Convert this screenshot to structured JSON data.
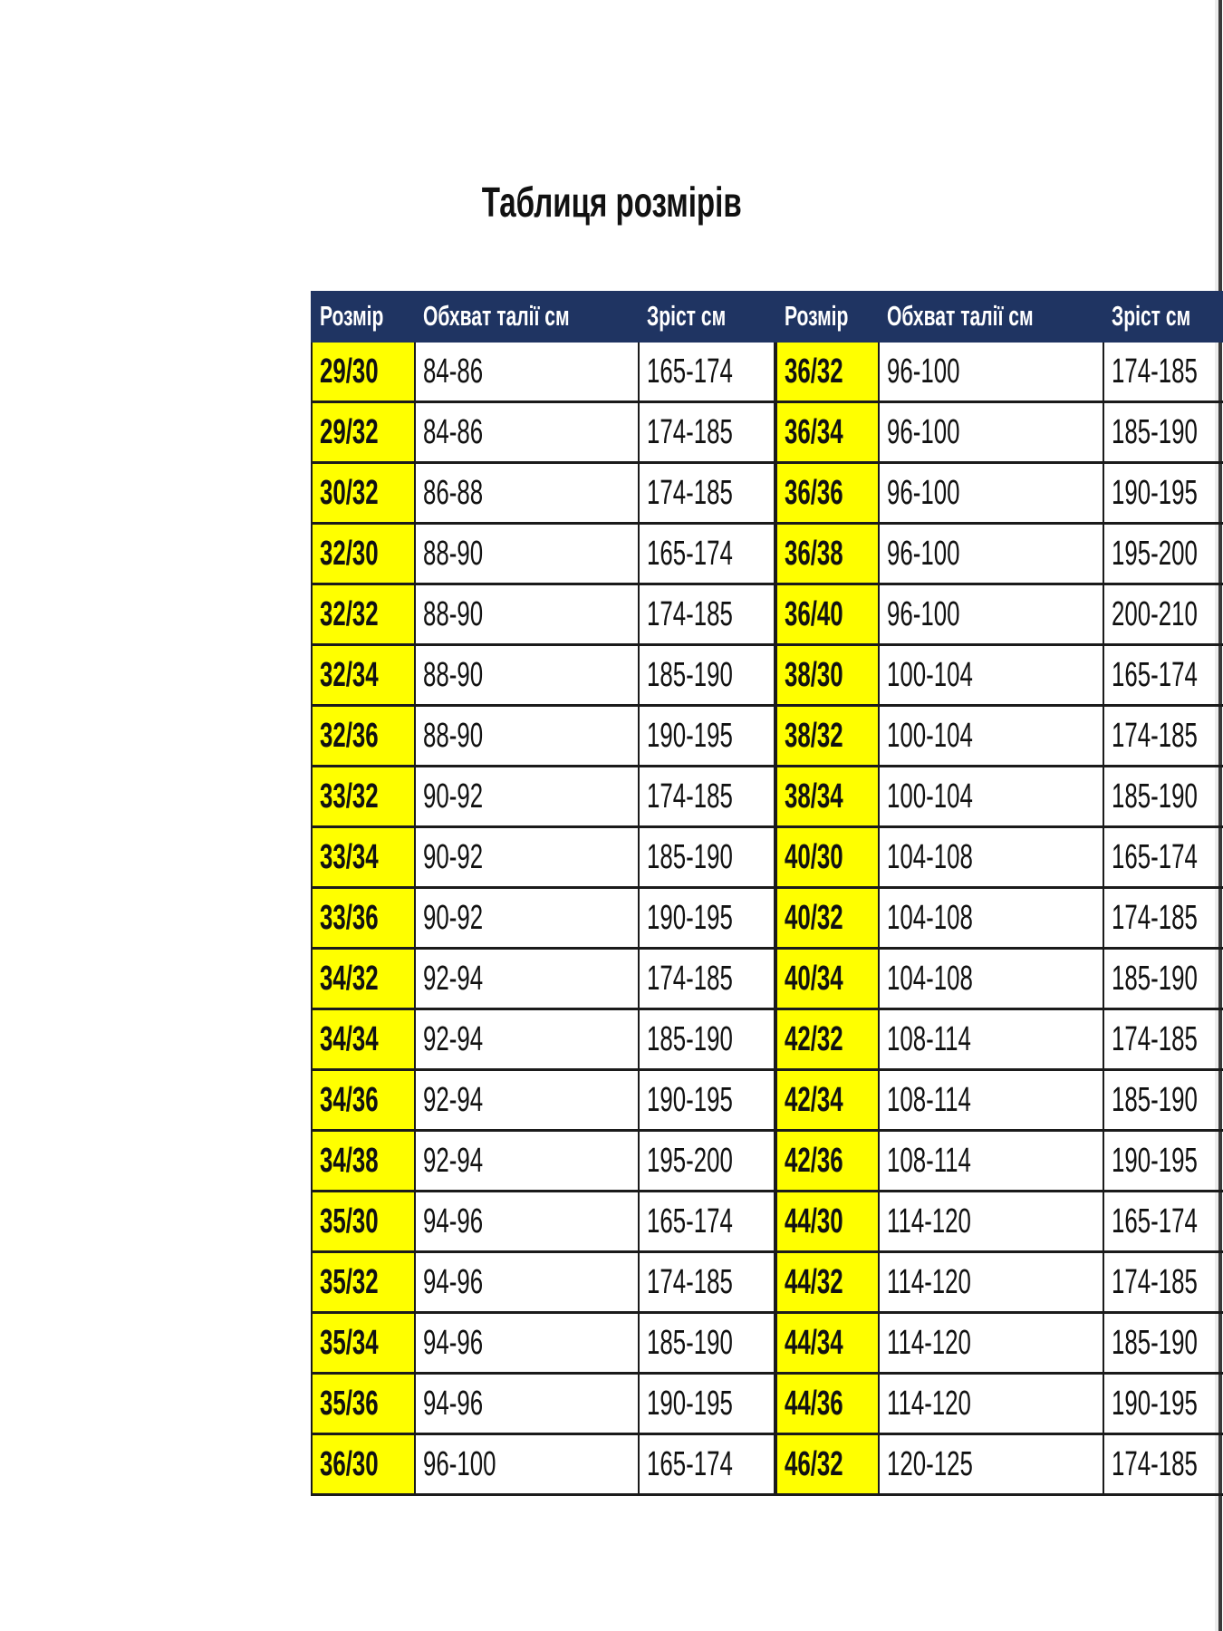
{
  "title": "Таблиця розмірів",
  "headers": [
    "Розмір",
    "Обхват талії см",
    "Зріст см"
  ],
  "colors": {
    "header_bg": "#1f3462",
    "size_highlight": "#ffff00"
  },
  "left_rows": [
    [
      "29/30",
      "84-86",
      "165-174"
    ],
    [
      "29/32",
      "84-86",
      "174-185"
    ],
    [
      "30/32",
      "86-88",
      "174-185"
    ],
    [
      "32/30",
      "88-90",
      "165-174"
    ],
    [
      "32/32",
      "88-90",
      "174-185"
    ],
    [
      "32/34",
      "88-90",
      "185-190"
    ],
    [
      "32/36",
      "88-90",
      "190-195"
    ],
    [
      "33/32",
      "90-92",
      "174-185"
    ],
    [
      "33/34",
      "90-92",
      "185-190"
    ],
    [
      "33/36",
      "90-92",
      "190-195"
    ],
    [
      "34/32",
      "92-94",
      "174-185"
    ],
    [
      "34/34",
      "92-94",
      "185-190"
    ],
    [
      "34/36",
      "92-94",
      "190-195"
    ],
    [
      "34/38",
      "92-94",
      "195-200"
    ],
    [
      "35/30",
      "94-96",
      "165-174"
    ],
    [
      "35/32",
      "94-96",
      "174-185"
    ],
    [
      "35/34",
      "94-96",
      "185-190"
    ],
    [
      "35/36",
      "94-96",
      "190-195"
    ],
    [
      "36/30",
      "96-100",
      "165-174"
    ]
  ],
  "right_rows": [
    [
      "36/32",
      "96-100",
      "174-185"
    ],
    [
      "36/34",
      "96-100",
      "185-190"
    ],
    [
      "36/36",
      "96-100",
      "190-195"
    ],
    [
      "36/38",
      "96-100",
      "195-200"
    ],
    [
      "36/40",
      "96-100",
      "200-210"
    ],
    [
      "38/30",
      "100-104",
      "165-174"
    ],
    [
      "38/32",
      "100-104",
      "174-185"
    ],
    [
      "38/34",
      "100-104",
      "185-190"
    ],
    [
      "40/30",
      "104-108",
      "165-174"
    ],
    [
      "40/32",
      "104-108",
      "174-185"
    ],
    [
      "40/34",
      "104-108",
      "185-190"
    ],
    [
      "42/32",
      "108-114",
      "174-185"
    ],
    [
      "42/34",
      "108-114",
      "185-190"
    ],
    [
      "42/36",
      "108-114",
      "190-195"
    ],
    [
      "44/30",
      "114-120",
      "165-174"
    ],
    [
      "44/32",
      "114-120",
      "174-185"
    ],
    [
      "44/34",
      "114-120",
      "185-190"
    ],
    [
      "44/36",
      "114-120",
      "190-195"
    ],
    [
      "46/32",
      "120-125",
      "174-185"
    ]
  ]
}
